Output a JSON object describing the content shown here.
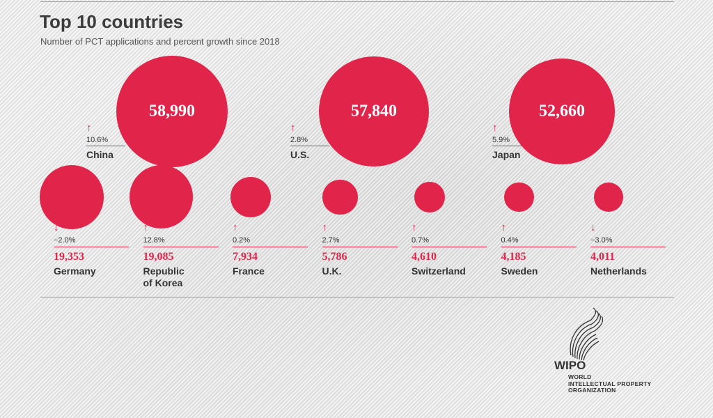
{
  "title": "Top 10 countries",
  "subtitle": "Number of PCT applications and percent growth since 2018",
  "colors": {
    "accent": "#e1244a",
    "text": "#333333"
  },
  "chart_data": {
    "type": "bubble",
    "title": "Top 10 countries",
    "subtitle": "Number of PCT applications and percent growth since 2018",
    "series": [
      {
        "country": "China",
        "value": 58990,
        "value_label": "58,990",
        "growth": 10.6,
        "growth_label": "10.6%",
        "direction": "up"
      },
      {
        "country": "U.S.",
        "value": 57840,
        "value_label": "57,840",
        "growth": 2.8,
        "growth_label": "2.8%",
        "direction": "up"
      },
      {
        "country": "Japan",
        "value": 52660,
        "value_label": "52,660",
        "growth": 5.9,
        "growth_label": "5.9%",
        "direction": "up"
      },
      {
        "country": "Germany",
        "value": 19353,
        "value_label": "19,353",
        "growth": -2.0,
        "growth_label": "−2.0%",
        "direction": "down"
      },
      {
        "country": "Republic of Korea",
        "value": 19085,
        "value_label": "19,085",
        "growth": 12.8,
        "growth_label": "12.8%",
        "direction": "up"
      },
      {
        "country": "France",
        "value": 7934,
        "value_label": "7,934",
        "growth": 0.2,
        "growth_label": "0.2%",
        "direction": "up"
      },
      {
        "country": "U.K.",
        "value": 5786,
        "value_label": "5,786",
        "growth": 2.7,
        "growth_label": "2.7%",
        "direction": "up"
      },
      {
        "country": "Switzerland",
        "value": 4610,
        "value_label": "4,610",
        "growth": 0.7,
        "growth_label": "0.7%",
        "direction": "up"
      },
      {
        "country": "Sweden",
        "value": 4185,
        "value_label": "4,185",
        "growth": 0.4,
        "growth_label": "0.4%",
        "direction": "up"
      },
      {
        "country": "Netherlands",
        "value": 4011,
        "value_label": "4,011",
        "growth": -3.0,
        "growth_label": "−3.0%",
        "direction": "down"
      }
    ]
  },
  "logo": {
    "name": "WIPO",
    "org_lines": [
      "WORLD",
      "INTELLECTUAL PROPERTY",
      "ORGANIZATION"
    ]
  }
}
